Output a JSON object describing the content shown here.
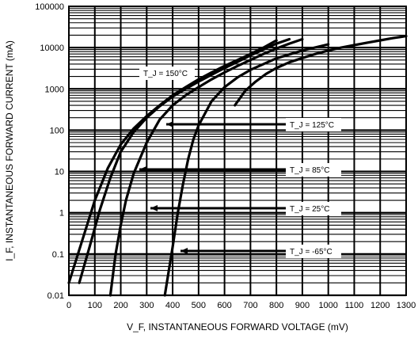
{
  "chart_data": {
    "type": "line",
    "title": "",
    "xlabel": "V_F, INSTANTANEOUS FORWARD VOLTAGE (mV)",
    "ylabel": "I_F, INSTANTANEOUS FORWARD CURRENT (mA)",
    "xlim": [
      0,
      1300
    ],
    "ylim": [
      0.01,
      100000
    ],
    "yscale": "log",
    "grid": true,
    "x_ticks": [
      "0",
      "100",
      "200",
      "300",
      "400",
      "500",
      "600",
      "700",
      "800",
      "900",
      "1000",
      "1100",
      "1200",
      "1300"
    ],
    "y_ticks": [
      "0.01",
      "0.1",
      "1",
      "10",
      "100",
      "1000",
      "10000",
      "100000"
    ],
    "series": [
      {
        "name": "T_J = 150°C",
        "x": [
          0,
          50,
          100,
          150,
          200,
          250,
          300,
          350,
          400,
          450,
          500,
          550,
          600,
          650,
          700,
          750,
          800
        ],
        "y": [
          0.02,
          0.2,
          2,
          12,
          45,
          110,
          220,
          400,
          700,
          1100,
          1700,
          2500,
          3600,
          5000,
          7000,
          10000,
          15000
        ]
      },
      {
        "name": "T_J = 125°C",
        "x": [
          40,
          80,
          120,
          160,
          200,
          250,
          300,
          350,
          400,
          450,
          500,
          550,
          600,
          650,
          700,
          750,
          800,
          850
        ],
        "y": [
          0.02,
          0.15,
          1.2,
          7,
          30,
          90,
          200,
          380,
          650,
          1000,
          1500,
          2200,
          3200,
          4500,
          6500,
          9000,
          12500,
          16000
        ]
      },
      {
        "name": "T_J = 85°C",
        "x": [
          160,
          180,
          200,
          220,
          250,
          300,
          350,
          400,
          450,
          500,
          550,
          600,
          650,
          700,
          750,
          800,
          850,
          900
        ],
        "y": [
          0.01,
          0.1,
          0.5,
          2,
          9,
          50,
          180,
          400,
          700,
          1100,
          1700,
          2500,
          3600,
          5000,
          7000,
          9500,
          12500,
          16000
        ]
      },
      {
        "name": "T_J = 25°C",
        "x": [
          370,
          400,
          420,
          440,
          460,
          480,
          500,
          550,
          600,
          650,
          700,
          800,
          900,
          1000
        ],
        "y": [
          0.01,
          0.15,
          1,
          5,
          20,
          60,
          130,
          500,
          1100,
          1900,
          2900,
          5500,
          8500,
          12000
        ]
      },
      {
        "name": "T_J = -65°C",
        "x": [
          640,
          680,
          720,
          760,
          800,
          850,
          900,
          950,
          1000,
          1050,
          1100,
          1150,
          1200,
          1250,
          1300
        ],
        "y": [
          400,
          900,
          1500,
          2300,
          3200,
          4400,
          5600,
          7000,
          8500,
          10000,
          11500,
          13200,
          15000,
          17000,
          19000
        ]
      }
    ],
    "annotations": [
      {
        "text": "T_J = 150°C"
      },
      {
        "text": "T_J = 125°C"
      },
      {
        "text": "T_J = 85°C"
      },
      {
        "text": "T_J = 25°C"
      },
      {
        "text": "T_J = -65°C"
      }
    ]
  }
}
